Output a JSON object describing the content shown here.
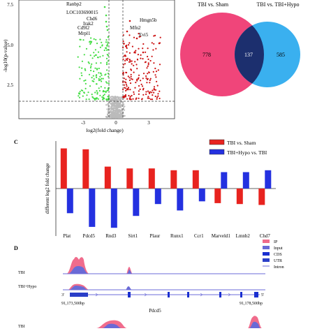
{
  "volcano": {
    "ylabel": "-log10(p-value)",
    "xlabel": "log2(fold change)",
    "y_ticks": [
      "7.5",
      "5.0",
      "2.5"
    ],
    "x_ticks": [
      "-3",
      "0",
      "3"
    ],
    "labels_left": [
      "Ranbp2",
      "LOC103690015",
      "Chd6",
      "Irak2",
      "Cd9l2",
      "Mrpl1"
    ],
    "labels_right": [
      "Hmgn5b",
      "Mfn2",
      "Evi5"
    ],
    "colors": {
      "down": "#44dd44",
      "up": "#cc1111",
      "ns": "#bbbbbb"
    }
  },
  "venn": {
    "left_title": "TBI vs. Sham",
    "right_title": "TBI vs. TBI+Hypo",
    "left_only": "778",
    "overlap": "137",
    "right_only": "585",
    "colors": {
      "left": "#f0457a",
      "right": "#3ab0ef",
      "overlap": "#1c2f6e"
    }
  },
  "panel_c": {
    "label": "C",
    "legend": [
      "TBI vs. Sham",
      "TBI+Hypo vs. TBI"
    ],
    "colors": {
      "s1": "#e8231f",
      "s2": "#2431e0"
    }
  },
  "chart_data": {
    "type": "bar",
    "categories": [
      "Plat",
      "Pdcd5",
      "Rnd3",
      "Sirt1",
      "Plaur",
      "Runx1",
      "Ccr1",
      "Marveld1",
      "Lmnb2",
      "Chd7"
    ],
    "series": [
      {
        "name": "TBI vs. Sham",
        "values": [
          2.2,
          2.15,
          1.2,
          1.1,
          1.1,
          1.0,
          1.0,
          -0.8,
          -0.85,
          -0.9
        ]
      },
      {
        "name": "TBI+Hypo vs. TBI",
        "values": [
          -1.35,
          -2.1,
          -2.15,
          -1.5,
          -0.85,
          -1.2,
          -0.7,
          0.9,
          0.9,
          1.0
        ]
      }
    ],
    "ylabel": "different log2 fold change",
    "ylim": [
      -2.6,
      2.6
    ],
    "grid": false
  },
  "panel_d": {
    "label": "D",
    "legend": [
      "IP",
      "Input",
      "CDS",
      "UTR",
      "Intron"
    ],
    "track1": "TBI",
    "track2": "TBI+Hypo",
    "track3": "TBI",
    "gene": "Pdcd5",
    "coord_left": "91,173,500bp",
    "coord_right": "91,178,500bp",
    "strand_left": "3'",
    "strand_right": "5'",
    "colors": {
      "ip": "#f06c8c",
      "input": "#6a6ad6",
      "cds": "#1a2fd0",
      "utr": "#2a3ec8",
      "intron": "#6b6bd8"
    }
  }
}
